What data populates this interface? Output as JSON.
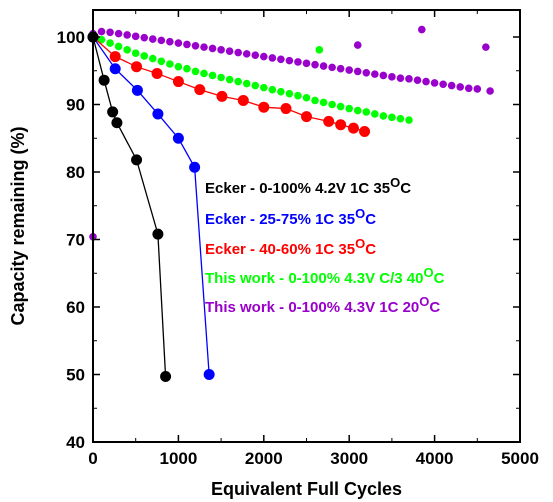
{
  "chart_data": {
    "type": "scatter",
    "xlabel": "Equivalent Full Cycles",
    "ylabel": "Capacity remaining (%)",
    "xlim": [
      0,
      5000
    ],
    "ylim": [
      40,
      104
    ],
    "xticks": [
      "0",
      "1000",
      "2000",
      "3000",
      "4000",
      "5000"
    ],
    "yticks": [
      "40",
      "50",
      "60",
      "70",
      "80",
      "90",
      "100"
    ],
    "grid": false,
    "legend": {
      "placement": "center-right"
    },
    "series": [
      {
        "name": "Ecker - 0-100% 4.2V 1C 35",
        "unit_suffix": "OC",
        "color": "#000000",
        "connected": true,
        "x": [
          0,
          130,
          230,
          280,
          510,
          760,
          850
        ],
        "y": [
          100,
          93.6,
          88.9,
          87.3,
          81.8,
          70.8,
          49.7
        ]
      },
      {
        "name": "Ecker - 25-75% 1C 35",
        "unit_suffix": "OC",
        "color": "#0000ff",
        "connected": true,
        "x": [
          0,
          260,
          520,
          760,
          1000,
          1190,
          1360
        ],
        "y": [
          100,
          95.3,
          92.1,
          88.6,
          85.0,
          80.7,
          50.0
        ]
      },
      {
        "name": "Ecker - 40-60% 1C 35",
        "unit_suffix": "OC",
        "color": "#ff0000",
        "connected": true,
        "x": [
          0,
          260,
          510,
          750,
          1000,
          1250,
          1510,
          1760,
          2000,
          2260,
          2500,
          2760,
          2900,
          3050,
          3180
        ],
        "y": [
          100,
          97.1,
          95.6,
          94.6,
          93.4,
          92.2,
          91.2,
          90.6,
          89.6,
          89.4,
          88.2,
          87.5,
          87.0,
          86.5,
          86.0
        ]
      },
      {
        "name": "This work - 0-100% 4.3V C/3 40",
        "unit_suffix": "OC",
        "color": "#00ff00",
        "connected": false,
        "x": [
          0,
          100,
          200,
          300,
          400,
          500,
          600,
          700,
          800,
          900,
          1000,
          1100,
          1200,
          1300,
          1400,
          1500,
          1600,
          1700,
          1800,
          1900,
          2000,
          2100,
          2200,
          2300,
          2400,
          2500,
          2600,
          2700,
          2800,
          2900,
          3000,
          3100,
          3200,
          3300,
          3400,
          3500,
          3600,
          3700,
          2650
        ],
        "y": [
          100,
          99.6,
          99.1,
          98.6,
          98.1,
          97.6,
          97.2,
          96.8,
          96.4,
          96.0,
          95.6,
          95.3,
          94.9,
          94.6,
          94.3,
          94.0,
          93.7,
          93.4,
          93.1,
          92.8,
          92.5,
          92.2,
          91.9,
          91.6,
          91.3,
          91.0,
          90.6,
          90.3,
          90.0,
          89.7,
          89.4,
          89.1,
          88.9,
          88.6,
          88.3,
          88.1,
          87.9,
          87.7,
          98.1
        ]
      },
      {
        "name": "This work - 0-100% 4.3V 1C 20",
        "unit_suffix": "OC",
        "color": "#9900cc",
        "connected": false,
        "x": [
          0,
          100,
          200,
          300,
          400,
          500,
          600,
          700,
          800,
          900,
          1000,
          1100,
          1200,
          1300,
          1400,
          1500,
          1600,
          1700,
          1800,
          1900,
          2000,
          2100,
          2200,
          2300,
          2400,
          2500,
          2600,
          2700,
          2800,
          2900,
          3000,
          3100,
          3200,
          3300,
          3400,
          3500,
          3600,
          3700,
          3800,
          3900,
          4000,
          4100,
          4200,
          4300,
          4400,
          4500,
          4650,
          0,
          3100,
          3850,
          4600
        ],
        "y": [
          100.5,
          100.8,
          100.7,
          100.5,
          100.3,
          100.1,
          99.9,
          99.7,
          99.5,
          99.3,
          99.1,
          98.9,
          98.7,
          98.5,
          98.3,
          98.1,
          97.9,
          97.7,
          97.5,
          97.3,
          97.1,
          96.9,
          96.7,
          96.5,
          96.3,
          96.1,
          95.9,
          95.7,
          95.5,
          95.3,
          95.1,
          94.9,
          94.7,
          94.5,
          94.3,
          94.1,
          93.9,
          93.8,
          93.6,
          93.4,
          93.2,
          93.0,
          92.8,
          92.6,
          92.4,
          92.3,
          92.0,
          70.4,
          98.8,
          101.1,
          98.5
        ]
      }
    ]
  }
}
